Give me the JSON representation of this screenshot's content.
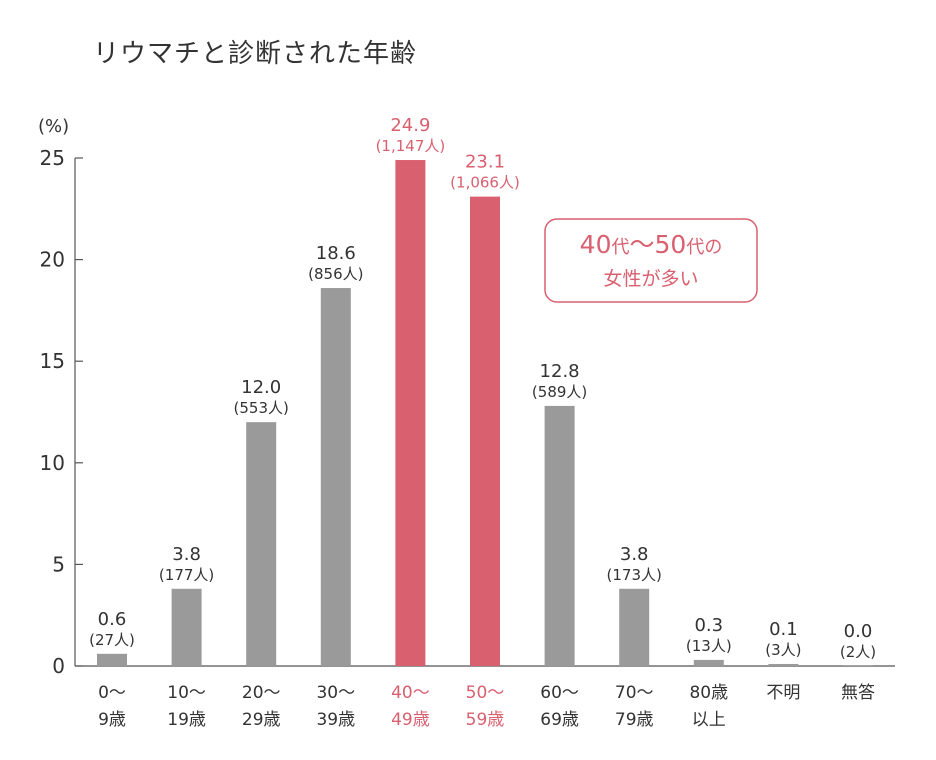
{
  "title": "リウマチと診断された年齢",
  "chart_data": {
    "type": "bar",
    "ylabel": "(%)",
    "ylim": [
      0,
      25
    ],
    "yticks": [
      0,
      5,
      10,
      15,
      20,
      25
    ],
    "grid": false,
    "categories": [
      [
        "0〜",
        "9歳"
      ],
      [
        "10〜",
        "19歳"
      ],
      [
        "20〜",
        "29歳"
      ],
      [
        "30〜",
        "39歳"
      ],
      [
        "40〜",
        "49歳"
      ],
      [
        "50〜",
        "59歳"
      ],
      [
        "60〜",
        "69歳"
      ],
      [
        "70〜",
        "79歳"
      ],
      [
        "80歳",
        "以上"
      ],
      [
        "不明"
      ],
      [
        "無答"
      ]
    ],
    "values": [
      0.6,
      3.8,
      12.0,
      18.6,
      24.9,
      23.1,
      12.8,
      3.8,
      0.3,
      0.1,
      0.0
    ],
    "value_labels": [
      "0.6",
      "3.8",
      "12.0",
      "18.6",
      "24.9",
      "23.1",
      "12.8",
      "3.8",
      "0.3",
      "0.1",
      "0.0"
    ],
    "counts": [
      "(27人)",
      "(177人)",
      "(553人)",
      "(856人)",
      "(1,147人)",
      "(1,066人)",
      "(589人)",
      "(173人)",
      "(13人)",
      "(3人)",
      "(2人)"
    ],
    "highlight": [
      false,
      false,
      false,
      false,
      true,
      true,
      false,
      false,
      false,
      false,
      false
    ],
    "colors": {
      "bar": "#9a9a9a",
      "highlight": "#d9606f",
      "text": "#333333",
      "axis": "#555555"
    },
    "callout": {
      "line1_parts": [
        {
          "text": "40",
          "size": "big"
        },
        {
          "text": "代",
          "size": "small"
        },
        {
          "text": "〜",
          "size": "big"
        },
        {
          "text": "50",
          "size": "big"
        },
        {
          "text": "代",
          "size": "small"
        },
        {
          "text": "の",
          "size": "small"
        }
      ],
      "line2": "女性が多い"
    }
  }
}
